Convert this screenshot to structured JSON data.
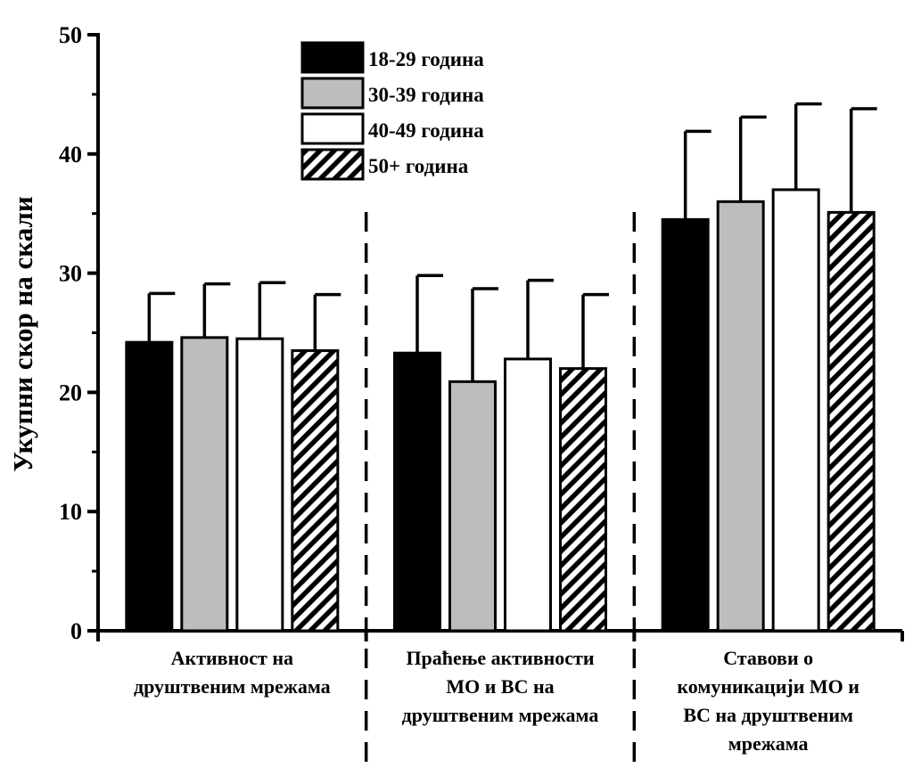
{
  "chart_data": {
    "type": "bar",
    "ylabel": "Укупни скор на скали",
    "xlabel": "",
    "ylim": [
      0,
      50
    ],
    "yticks": [
      0,
      10,
      20,
      30,
      40,
      50
    ],
    "categories": [
      [
        "Активност на",
        "друштвеним мрежама"
      ],
      [
        "Праћење активности",
        "МО и ВС на",
        "друштвеним мрежама"
      ],
      [
        "Ставови о",
        "комуникацији МО и",
        "ВС на друштвеним",
        "мрежама"
      ]
    ],
    "series": [
      {
        "name": "18-29 година",
        "fill": "#000000",
        "pattern": "none",
        "values": [
          24.2,
          23.3,
          34.5
        ],
        "errors": [
          4.1,
          6.5,
          7.4
        ]
      },
      {
        "name": "30-39 година",
        "fill": "#bdbdbd",
        "pattern": "none",
        "values": [
          24.6,
          20.9,
          36.0
        ],
        "errors": [
          4.5,
          7.8,
          7.1
        ]
      },
      {
        "name": "40-49 година",
        "fill": "#ffffff",
        "pattern": "none",
        "values": [
          24.5,
          22.8,
          37.0
        ],
        "errors": [
          4.7,
          6.6,
          7.2
        ]
      },
      {
        "name": "50+ година",
        "fill": "#ffffff",
        "pattern": "diagonal-hatch",
        "values": [
          23.5,
          22.0,
          35.1
        ],
        "errors": [
          4.7,
          6.2,
          8.7
        ]
      }
    ],
    "separators": "dashed vertical lines between groups",
    "legend_position": "top-center",
    "grid": false
  }
}
